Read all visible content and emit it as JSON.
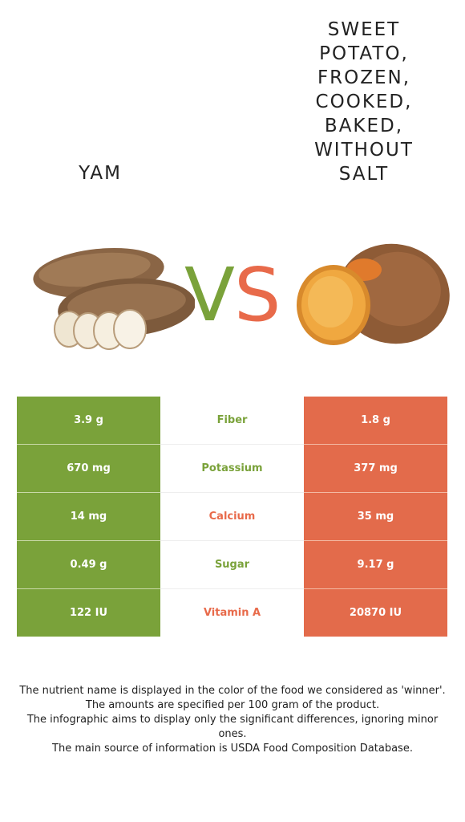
{
  "colors": {
    "left": "#7aa23a",
    "right": "#e86a4a",
    "left_cell": "#7aa23a",
    "right_cell": "#e36b4b"
  },
  "left_food": {
    "name": "Yam",
    "image_icon": "yam-image"
  },
  "right_food": {
    "name": "Sweet potato, frozen, cooked, baked, without salt",
    "image_icon": "sweet-potato-image"
  },
  "vs": {
    "v": "V",
    "s": "S"
  },
  "comparison": [
    {
      "left": "3.9 g",
      "nutrient": "Fiber",
      "right": "1.8 g",
      "winner": "left"
    },
    {
      "left": "670 mg",
      "nutrient": "Potassium",
      "right": "377 mg",
      "winner": "left"
    },
    {
      "left": "14 mg",
      "nutrient": "Calcium",
      "right": "35 mg",
      "winner": "right"
    },
    {
      "left": "0.49 g",
      "nutrient": "Sugar",
      "right": "9.17 g",
      "winner": "left"
    },
    {
      "left": "122 IU",
      "nutrient": "Vitamin A",
      "right": "20870 IU",
      "winner": "right"
    }
  ],
  "footer": [
    "The nutrient name is displayed in the color of the food we considered as 'winner'.",
    "The amounts are specified per 100 gram of the product.",
    "The infographic aims to display only the significant differences, ignoring minor ones.",
    "The main source of information is USDA Food Composition Database."
  ]
}
